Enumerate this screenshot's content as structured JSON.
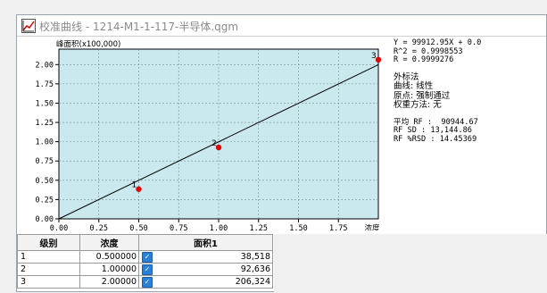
{
  "window": {
    "title": "校准曲线 - 1214-M1-1-117-半导体.qgm"
  },
  "chart_data": {
    "type": "scatter",
    "ylabel": "峰面积(x100,000)",
    "xlabel": "浓度",
    "xlim": [
      0,
      2.0
    ],
    "ylim": [
      0,
      2.2
    ],
    "x_ticks": [
      "0.00",
      "0.25",
      "0.50",
      "0.75",
      "1.00",
      "1.25",
      "1.50",
      "1.75"
    ],
    "y_ticks": [
      "0.00",
      "0.25",
      "0.50",
      "0.75",
      "1.00",
      "1.25",
      "1.50",
      "1.75",
      "2.00"
    ],
    "grid": true,
    "points": [
      {
        "label": "1",
        "x": 0.5,
        "y": 0.38518
      },
      {
        "label": "2",
        "x": 1.0,
        "y": 0.92636
      },
      {
        "label": "3",
        "x": 2.0,
        "y": 2.06324
      }
    ],
    "fit_line": {
      "slope": 0.9991295,
      "intercept": 0.0
    },
    "colors": {
      "plot_bg": "#c9e9ef",
      "point": "#e00000",
      "line": "#000000",
      "grid": "#7a8a90"
    }
  },
  "info": {
    "equation": "Y = 99912.95X + 0.0",
    "r2": "R^2 = 0.9998553",
    "r": "R = 0.9999276",
    "method": "外标法",
    "curve": "曲线: 线性",
    "origin": "原点: 强制通过",
    "weight": "权重方法: 无",
    "rf_avg": "平均 RF :  90944.67",
    "rf_sd": "RF SD : 13,144.86",
    "rf_rsd": "RF %RSD : 14.45369"
  },
  "table": {
    "headers": [
      "级别",
      "浓度",
      "面积1"
    ],
    "rows": [
      {
        "level": "1",
        "conc": "0.500000",
        "area": "38,518"
      },
      {
        "level": "2",
        "conc": "1.00000",
        "area": "92,636"
      },
      {
        "level": "3",
        "conc": "2.00000",
        "area": "206,324"
      }
    ]
  }
}
